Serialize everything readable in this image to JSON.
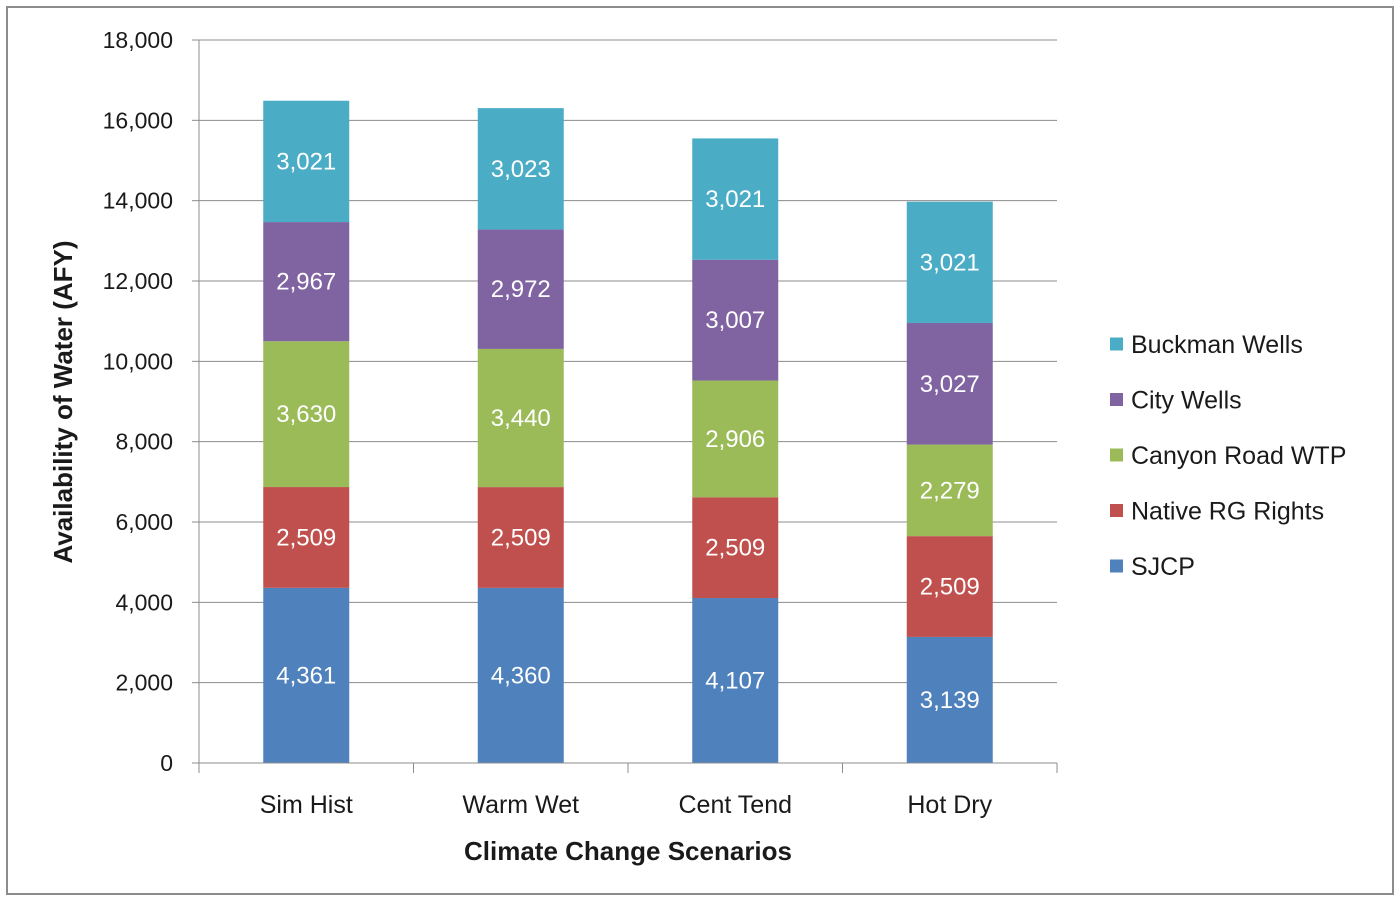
{
  "chart_data": {
    "type": "bar",
    "stacked": true,
    "categories": [
      "Sim Hist",
      "Warm Wet",
      "Cent Tend",
      "Hot Dry"
    ],
    "series": [
      {
        "name": "SJCP",
        "color": "#4f81bd",
        "values": [
          4361,
          4360,
          4107,
          3139
        ],
        "labels": [
          "4,361",
          "4,360",
          "4,107",
          "3,139"
        ]
      },
      {
        "name": "Native RG Rights",
        "color": "#c0504d",
        "values": [
          2509,
          2509,
          2509,
          2509
        ],
        "labels": [
          "2,509",
          "2,509",
          "2,509",
          "2,509"
        ]
      },
      {
        "name": "Canyon Road WTP",
        "color": "#9bbb59",
        "values": [
          3630,
          3440,
          2906,
          2279
        ],
        "labels": [
          "3,630",
          "3,440",
          "2,906",
          "2,279"
        ]
      },
      {
        "name": "City Wells",
        "color": "#8064a2",
        "values": [
          2967,
          2972,
          3007,
          3027
        ],
        "labels": [
          "2,967",
          "2,972",
          "3,007",
          "3,027"
        ]
      },
      {
        "name": "Buckman Wells",
        "color": "#4bacc6",
        "values": [
          3021,
          3023,
          3021,
          3021
        ],
        "labels": [
          "3,021",
          "3,023",
          "3,021",
          "3,021"
        ]
      }
    ],
    "legend_order": [
      "Buckman Wells",
      "City Wells",
      "Canyon Road WTP",
      "Native RG Rights",
      "SJCP"
    ],
    "xlabel": "Climate Change Scenarios",
    "ylabel": "Availability of Water (AFY)",
    "ylim": [
      0,
      18000
    ],
    "yticks": [
      0,
      2000,
      4000,
      6000,
      8000,
      10000,
      12000,
      14000,
      16000,
      18000
    ],
    "ytick_labels": [
      "0",
      "2,000",
      "4,000",
      "6,000",
      "8,000",
      "10,000",
      "12,000",
      "14,000",
      "16,000",
      "18,000"
    ],
    "grid": true,
    "legend_position": "right",
    "gridline_color": "#8c8c8c",
    "axis_color": "#8c8c8c"
  }
}
